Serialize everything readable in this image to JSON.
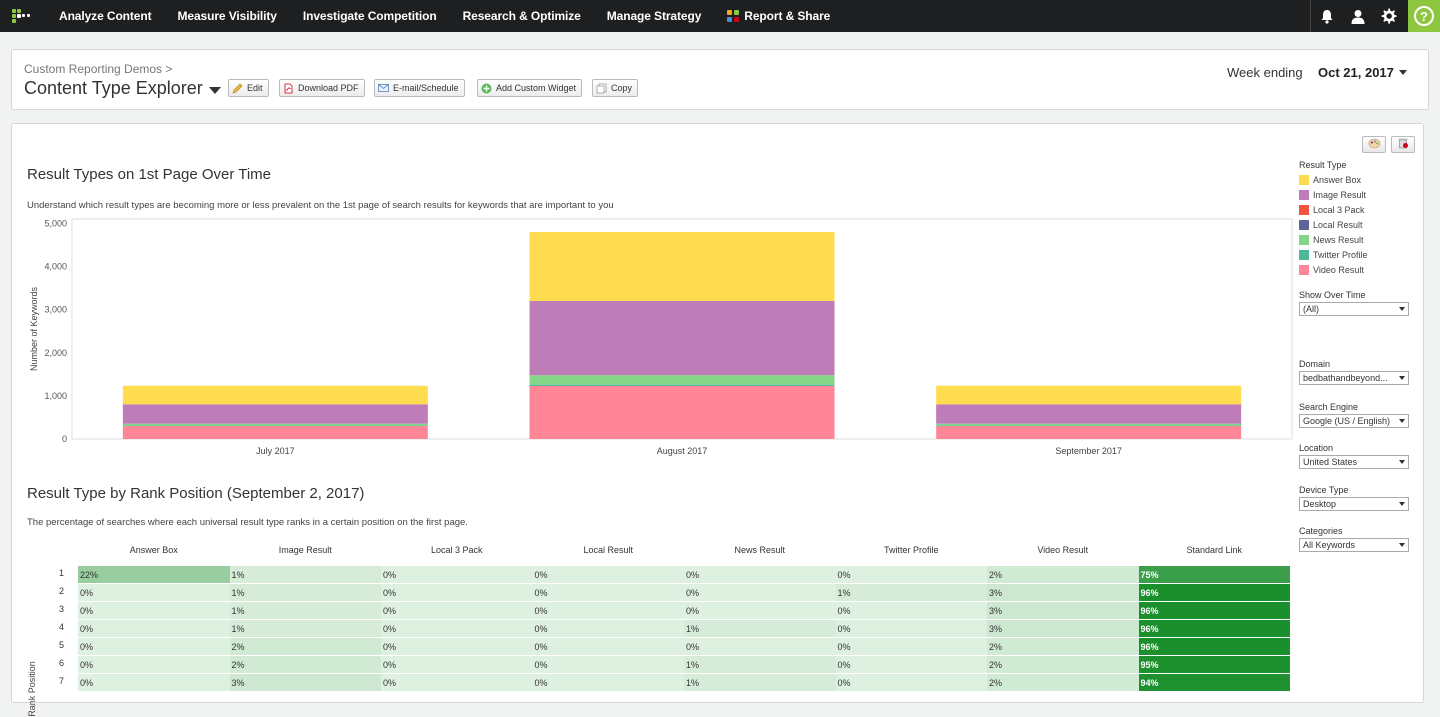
{
  "nav": {
    "items": [
      {
        "label": "Analyze Content",
        "name": "nav-analyze-content"
      },
      {
        "label": "Measure Visibility",
        "name": "nav-measure-visibility"
      },
      {
        "label": "Investigate Competition",
        "name": "nav-investigate-competition"
      },
      {
        "label": "Research & Optimize",
        "name": "nav-research-optimize"
      },
      {
        "label": "Manage Strategy",
        "name": "nav-manage-strategy"
      },
      {
        "label": "Report & Share",
        "name": "nav-report-share"
      }
    ],
    "icons": [
      "bell-icon",
      "user-icon",
      "gear-icon",
      "help-icon"
    ],
    "help_label": "?",
    "accent": "#8dc63f"
  },
  "header": {
    "breadcrumb": "Custom Reporting Demos >",
    "title": "Content Type Explorer",
    "buttons": [
      {
        "label": "Edit",
        "name": "edit-button",
        "icon": "pencil-icon"
      },
      {
        "label": "Download PDF",
        "name": "download-pdf-button",
        "icon": "pdf-icon"
      },
      {
        "label": "E-mail/Schedule",
        "name": "email-schedule-button",
        "icon": "mail-icon"
      },
      {
        "label": "Add Custom Widget",
        "name": "add-custom-widget-button",
        "icon": "plus-circle-icon"
      },
      {
        "label": "Copy",
        "name": "copy-button",
        "icon": "copy-icon"
      }
    ],
    "week_label": "Week ending",
    "week_value": "Oct 21, 2017"
  },
  "chart_section": {
    "title": "Result Types on 1st Page Over Time",
    "subtitle": "Understand which result types are becoming more or less prevalent on the 1st page of search results for keywords that are important to you"
  },
  "chart_data": {
    "type": "bar",
    "stacked": true,
    "categories": [
      "July 2017",
      "August 2017",
      "September 2017"
    ],
    "ylabel": "Number of Keywords",
    "xlabel": "",
    "ylim": [
      0,
      5000
    ],
    "yticks": [
      0,
      1000,
      2000,
      3000,
      4000,
      5000
    ],
    "ytick_labels": [
      "0",
      "1,000",
      "2,000",
      "3,000",
      "4,000",
      "5,000"
    ],
    "series": [
      {
        "name": "Video Result",
        "color": "#ff8696",
        "values": [
          300,
          1230,
          300
        ]
      },
      {
        "name": "Twitter Profile",
        "color": "#50b89a",
        "values": [
          15,
          30,
          15
        ]
      },
      {
        "name": "News Result",
        "color": "#86d689",
        "values": [
          40,
          220,
          40
        ]
      },
      {
        "name": "Local Result",
        "color": "#5e6598",
        "values": [
          0,
          0,
          0
        ]
      },
      {
        "name": "Local 3 Pack",
        "color": "#f5553f",
        "values": [
          0,
          0,
          0
        ]
      },
      {
        "name": "Image Result",
        "color": "#be7db9",
        "values": [
          450,
          1720,
          450
        ]
      },
      {
        "name": "Answer Box",
        "color": "#ffdc4f",
        "values": [
          430,
          1600,
          430
        ]
      }
    ],
    "grid": false
  },
  "legend": {
    "title": "Result Type",
    "items": [
      {
        "label": "Answer Box",
        "color": "#ffdc4f"
      },
      {
        "label": "Image Result",
        "color": "#be7db9"
      },
      {
        "label": "Local 3 Pack",
        "color": "#f5553f"
      },
      {
        "label": "Local Result",
        "color": "#5e6598"
      },
      {
        "label": "News Result",
        "color": "#86d689"
      },
      {
        "label": "Twitter Profile",
        "color": "#50b89a"
      },
      {
        "label": "Video Result",
        "color": "#ff8696"
      }
    ]
  },
  "filters": [
    {
      "label": "Show Over Time",
      "value": "(All)",
      "name": "show-over-time-select"
    },
    {
      "label": "Domain",
      "value": "bedbathandbeyond...",
      "name": "domain-select"
    },
    {
      "label": "Search Engine",
      "value": "Google (US / English)",
      "name": "search-engine-select"
    },
    {
      "label": "Location",
      "value": "United States",
      "name": "location-select"
    },
    {
      "label": "Device Type",
      "value": "Desktop",
      "name": "device-type-select"
    },
    {
      "label": "Categories",
      "value": "All Keywords",
      "name": "categories-select"
    }
  ],
  "table_section": {
    "title": "Result Type by Rank Position (September 2, 2017)",
    "subtitle": "The percentage of searches where each universal result type ranks in a certain position on the first page.",
    "row_axis_label": "Rank Position",
    "columns": [
      "Answer Box",
      "Image Result",
      "Local 3 Pack",
      "Local Result",
      "News Result",
      "Twitter Profile",
      "Video Result",
      "Standard Link"
    ],
    "rows": [
      {
        "rank": "1",
        "values": [
          "22%",
          "1%",
          "0%",
          "0%",
          "0%",
          "0%",
          "2%",
          "75%"
        ]
      },
      {
        "rank": "2",
        "values": [
          "0%",
          "1%",
          "0%",
          "0%",
          "0%",
          "1%",
          "3%",
          "96%"
        ]
      },
      {
        "rank": "3",
        "values": [
          "0%",
          "1%",
          "0%",
          "0%",
          "0%",
          "0%",
          "3%",
          "96%"
        ]
      },
      {
        "rank": "4",
        "values": [
          "0%",
          "1%",
          "0%",
          "0%",
          "1%",
          "0%",
          "3%",
          "96%"
        ]
      },
      {
        "rank": "5",
        "values": [
          "0%",
          "2%",
          "0%",
          "0%",
          "0%",
          "0%",
          "2%",
          "96%"
        ]
      },
      {
        "rank": "6",
        "values": [
          "0%",
          "2%",
          "0%",
          "0%",
          "1%",
          "0%",
          "2%",
          "95%"
        ]
      },
      {
        "rank": "7",
        "values": [
          "0%",
          "3%",
          "0%",
          "0%",
          "1%",
          "0%",
          "2%",
          "94%"
        ]
      }
    ]
  }
}
